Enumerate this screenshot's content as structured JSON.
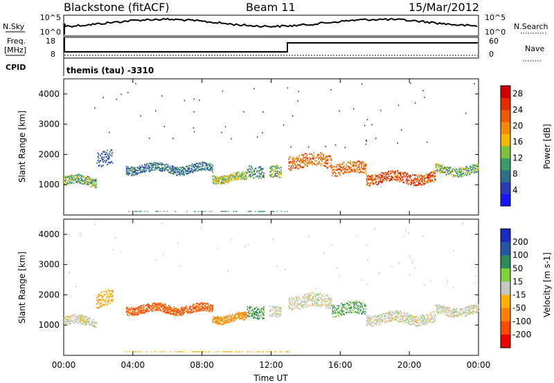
{
  "header": {
    "station": "Blackstone (fitACF)",
    "beam": "Beam 11",
    "date": "15/Mar/2012"
  },
  "top_panels": {
    "nsky_label": "N.Sky",
    "nsearch_label": "N.Search",
    "left_top_tick": "10^5",
    "left_bottom_tick": "10^0",
    "right_top_tick": "10^5",
    "right_bottom_tick": "10^0",
    "freq_label_line1": "Freq.",
    "freq_label_line2": "[MHz]",
    "freq_ticks": [
      "18",
      "8"
    ],
    "nave_label": "Nave",
    "nave_ticks": [
      "60",
      "0"
    ],
    "cpid_label": "CPID",
    "cpid_text": "themis (tau) -3310"
  },
  "x_axis": {
    "ticks": [
      "00:00",
      "04:00",
      "08:00",
      "12:00",
      "16:00",
      "20:00",
      "00:00"
    ],
    "label": "Time UT"
  },
  "colors": {
    "power_scale": [
      "#1414ff",
      "#2a3ab8",
      "#2f6e8c",
      "#3f9a6a",
      "#7cc23e",
      "#f2b900",
      "#f08a00",
      "#f25a00",
      "#e82a00",
      "#d00000"
    ],
    "velocity_scale": [
      "#1c2bbf",
      "#2457a8",
      "#2e8a5a",
      "#7fd23a",
      "#c8c8c0",
      "#ffb000",
      "#ff8000",
      "#ff4a00",
      "#ee0000"
    ]
  },
  "chart_data": [
    {
      "type": "heatmap",
      "title": "Power",
      "xlabel": "",
      "ylabel": "Slant Range [km]",
      "xlim_hours": [
        0,
        24
      ],
      "ylim_km": [
        0,
        4500
      ],
      "y_ticks": [
        1000,
        2000,
        3000,
        4000
      ],
      "colorbar_label": "Power [dB]",
      "colorbar_ticks": [
        "4",
        "8",
        "12",
        "16",
        "20",
        "24",
        "28"
      ],
      "colorbar_range": [
        0,
        30
      ],
      "echo_bands": [
        {
          "start_h": 0.0,
          "end_h": 1.9,
          "center_km": 1150,
          "width_km": 300,
          "power_db": 12
        },
        {
          "start_h": 1.9,
          "end_h": 2.8,
          "center_km": 1900,
          "width_km": 500,
          "power_db": 6
        },
        {
          "start_h": 3.6,
          "end_h": 8.6,
          "center_km": 1550,
          "width_km": 280,
          "power_db": 8
        },
        {
          "start_h": 8.6,
          "end_h": 10.6,
          "center_km": 1250,
          "width_km": 260,
          "power_db": 14
        },
        {
          "start_h": 10.6,
          "end_h": 11.6,
          "center_km": 1500,
          "width_km": 400,
          "power_db": 10
        },
        {
          "start_h": 11.9,
          "end_h": 12.6,
          "center_km": 1400,
          "width_km": 400,
          "power_db": 12
        },
        {
          "start_h": 13.0,
          "end_h": 15.5,
          "center_km": 1800,
          "width_km": 450,
          "power_db": 22
        },
        {
          "start_h": 15.5,
          "end_h": 17.5,
          "center_km": 1550,
          "width_km": 400,
          "power_db": 22
        },
        {
          "start_h": 17.5,
          "end_h": 21.5,
          "center_km": 1250,
          "width_km": 350,
          "power_db": 24
        },
        {
          "start_h": 21.5,
          "end_h": 24.0,
          "center_km": 1500,
          "width_km": 300,
          "power_db": 12
        }
      ]
    },
    {
      "type": "heatmap",
      "title": "Velocity",
      "xlabel": "Time UT",
      "ylabel": "Slant Range [km]",
      "xlim_hours": [
        0,
        24
      ],
      "ylim_km": [
        0,
        4500
      ],
      "y_ticks": [
        1000,
        2000,
        3000,
        4000
      ],
      "colorbar_label": "Velocity [m s-1]",
      "colorbar_ticks": [
        "200",
        "100",
        "50",
        "15",
        "-15",
        "-50",
        "-100",
        "-200"
      ],
      "echo_bands": [
        {
          "start_h": 0.0,
          "end_h": 1.9,
          "center_km": 1150,
          "width_km": 300,
          "velocity": 0
        },
        {
          "start_h": 1.9,
          "end_h": 2.8,
          "center_km": 1900,
          "width_km": 500,
          "velocity": -40
        },
        {
          "start_h": 3.6,
          "end_h": 8.6,
          "center_km": 1550,
          "width_km": 280,
          "velocity": -110
        },
        {
          "start_h": 8.6,
          "end_h": 10.6,
          "center_km": 1250,
          "width_km": 260,
          "velocity": -60
        },
        {
          "start_h": 10.6,
          "end_h": 11.6,
          "center_km": 1500,
          "width_km": 400,
          "velocity": 40
        },
        {
          "start_h": 11.9,
          "end_h": 12.6,
          "center_km": 1400,
          "width_km": 400,
          "velocity": 0
        },
        {
          "start_h": 13.0,
          "end_h": 15.5,
          "center_km": 1800,
          "width_km": 450,
          "velocity": 0
        },
        {
          "start_h": 15.5,
          "end_h": 17.5,
          "center_km": 1550,
          "width_km": 400,
          "velocity": 30
        },
        {
          "start_h": 17.5,
          "end_h": 21.5,
          "center_km": 1250,
          "width_km": 350,
          "velocity": 0
        },
        {
          "start_h": 21.5,
          "end_h": 24.0,
          "center_km": 1500,
          "width_km": 300,
          "velocity": 0
        }
      ]
    }
  ]
}
